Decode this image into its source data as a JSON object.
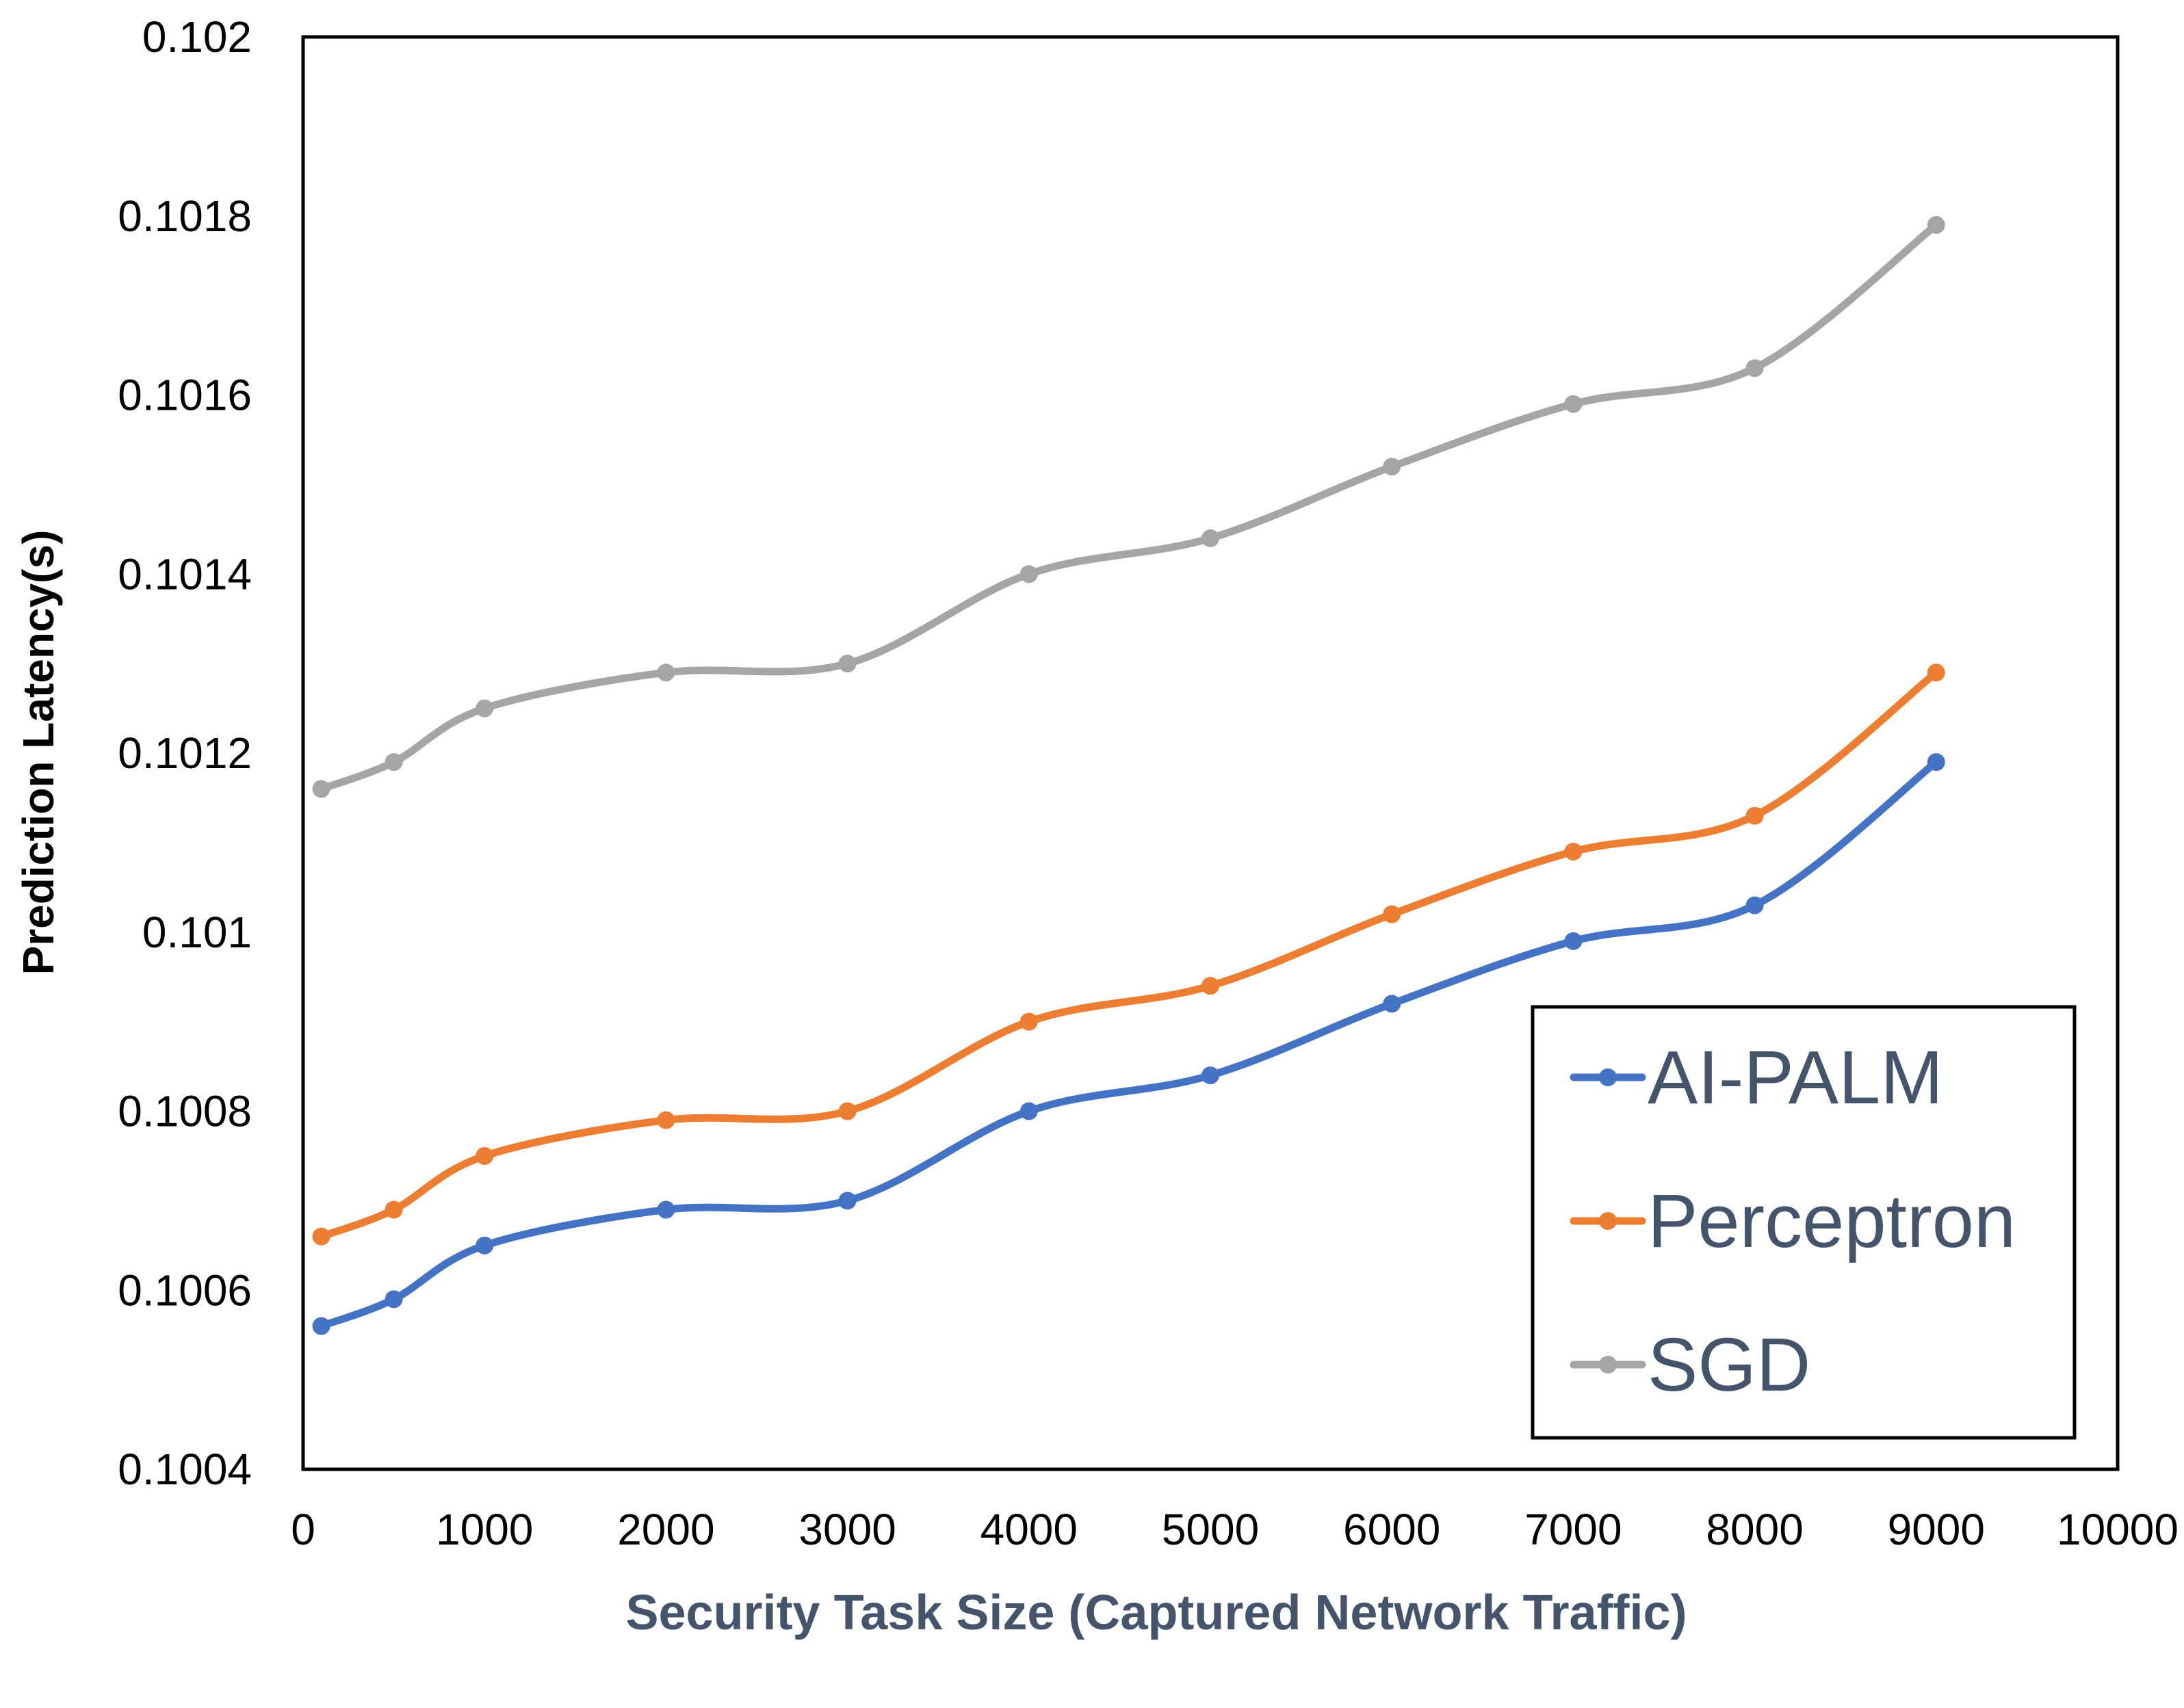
{
  "chart_data": {
    "type": "line",
    "title": "",
    "xlabel": "Security Task Size (Captured Network Traffic)",
    "ylabel": "Prediction Latency(s)",
    "xlim": [
      0,
      10000
    ],
    "ylim": [
      0.1004,
      0.102
    ],
    "x_ticks": [
      0,
      1000,
      2000,
      3000,
      4000,
      5000,
      6000,
      7000,
      8000,
      9000,
      10000
    ],
    "x_tick_labels": [
      "0",
      "1000",
      "2000",
      "3000",
      "4000",
      "5000",
      "6000",
      "7000",
      "8000",
      "9000",
      "10000"
    ],
    "y_ticks": [
      0.1004,
      0.1006,
      0.1008,
      0.101,
      0.1012,
      0.1014,
      0.1016,
      0.1018,
      0.102
    ],
    "y_tick_labels": [
      "0.1004",
      "0.1006",
      "0.1008",
      "0.101",
      "0.1012",
      "0.1014",
      "0.1016",
      "0.1018",
      "0.102"
    ],
    "grid": false,
    "legend_position": "bottom-right",
    "x": [
      100,
      500,
      1000,
      2000,
      3000,
      4000,
      5000,
      6000,
      7000,
      8000,
      9000
    ],
    "series": [
      {
        "name": "AI-PALM",
        "color": "#4472c4",
        "values": [
          0.10056,
          0.10059,
          0.10065,
          0.10069,
          0.1007,
          0.1008,
          0.10084,
          0.10092,
          0.10099,
          0.10103,
          0.10119
        ]
      },
      {
        "name": "Perceptron",
        "color": "#ed7d31",
        "values": [
          0.10066,
          0.10069,
          0.10075,
          0.10079,
          0.1008,
          0.1009,
          0.10094,
          0.10102,
          0.10109,
          0.10113,
          0.10129
        ]
      },
      {
        "name": "SGD",
        "color": "#a5a5a5",
        "values": [
          0.10116,
          0.10119,
          0.10125,
          0.10129,
          0.1013,
          0.1014,
          0.10144,
          0.10152,
          0.10159,
          0.10163,
          0.10179
        ]
      }
    ]
  }
}
